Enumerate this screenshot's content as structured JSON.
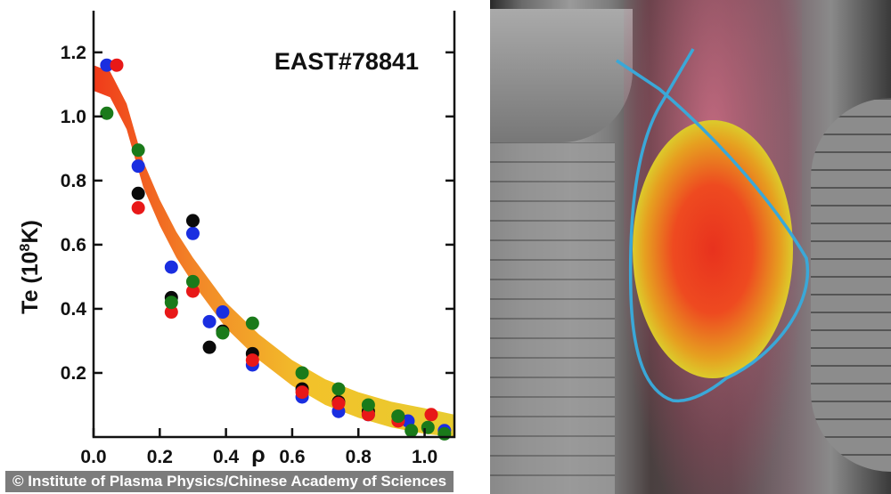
{
  "chart_data": {
    "type": "scatter",
    "title": "EAST#78841",
    "xlabel": "ρ",
    "ylabel_main": "Te (10",
    "ylabel_sup": "8",
    "ylabel_end": "K)",
    "xlim": [
      0,
      1.09
    ],
    "ylim": [
      0,
      1.33
    ],
    "xticks": [
      0.0,
      0.2,
      0.4,
      0.6,
      0.8,
      1.0
    ],
    "xtick_labels": [
      "0.0",
      "0.2",
      "0.4",
      "0.6",
      "0.8",
      "1.0"
    ],
    "yticks": [
      0.2,
      0.4,
      0.6,
      0.8,
      1.0,
      1.2
    ],
    "ytick_labels": [
      "0.2",
      "0.4",
      "0.6",
      "0.8",
      "1.0",
      "1.2"
    ],
    "grid": false,
    "band": {
      "name": "fit band",
      "x": [
        0,
        0.05,
        0.1,
        0.15,
        0.2,
        0.25,
        0.3,
        0.4,
        0.5,
        0.6,
        0.7,
        0.8,
        0.9,
        1.0,
        1.09
      ],
      "y": [
        1.12,
        1.1,
        1.0,
        0.82,
        0.7,
        0.6,
        0.52,
        0.38,
        0.28,
        0.2,
        0.14,
        0.1,
        0.07,
        0.05,
        0.03
      ],
      "halfwidth": 0.04,
      "colors": [
        "#f03a1a",
        "#f28a28",
        "#f2c22a",
        "#e8cc30"
      ]
    },
    "series": [
      {
        "name": "blue",
        "color": "#1a2ee0",
        "x": [
          0.04,
          0.135,
          0.235,
          0.3,
          0.35,
          0.39,
          0.48,
          0.63,
          0.74,
          0.83,
          0.95,
          1.06
        ],
        "y": [
          1.16,
          0.845,
          0.53,
          0.635,
          0.36,
          0.39,
          0.225,
          0.125,
          0.08,
          0.07,
          0.05,
          0.02
        ]
      },
      {
        "name": "black",
        "color": "#0a0a0a",
        "x": [
          0.135,
          0.235,
          0.3,
          0.35,
          0.39,
          0.48,
          0.63,
          0.74,
          0.83,
          0.92
        ],
        "y": [
          0.76,
          0.435,
          0.675,
          0.28,
          0.33,
          0.26,
          0.15,
          0.11,
          0.08,
          0.065
        ]
      },
      {
        "name": "red",
        "color": "#e81818",
        "x": [
          0.07,
          0.135,
          0.235,
          0.3,
          0.48,
          0.63,
          0.74,
          0.83,
          0.92,
          1.02
        ],
        "y": [
          1.16,
          0.715,
          0.39,
          0.455,
          0.24,
          0.14,
          0.105,
          0.07,
          0.05,
          0.07
        ]
      },
      {
        "name": "green",
        "color": "#1a7a1a",
        "x": [
          0.04,
          0.135,
          0.235,
          0.3,
          0.39,
          0.48,
          0.63,
          0.74,
          0.83,
          0.92,
          0.96,
          1.01,
          1.06
        ],
        "y": [
          1.01,
          0.895,
          0.42,
          0.485,
          0.325,
          0.355,
          0.2,
          0.15,
          0.1,
          0.065,
          0.02,
          0.03,
          0.01
        ]
      }
    ]
  },
  "caption": "© Institute of Plasma Physics/Chinese Academy of Sciences"
}
